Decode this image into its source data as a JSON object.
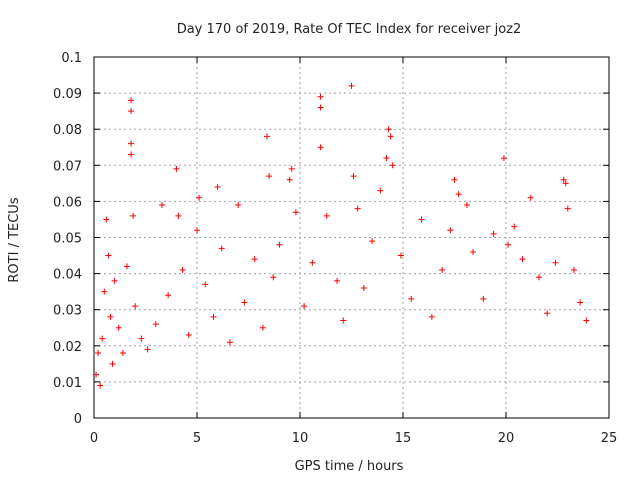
{
  "chart_data": {
    "type": "scatter",
    "title": "Day 170 of 2019, Rate Of TEC Index for receiver joz2",
    "xlabel": "GPS time / hours",
    "ylabel": "ROTI / TECUs",
    "xlim": [
      0,
      25
    ],
    "ylim": [
      0,
      0.1
    ],
    "xticks": [
      0,
      5,
      10,
      15,
      20,
      25
    ],
    "yticks": [
      0,
      0.01,
      0.02,
      0.03,
      0.04,
      0.05,
      0.06,
      0.07,
      0.08,
      0.09,
      0.1
    ],
    "xtick_labels": [
      "0",
      "5",
      "10",
      "15",
      "20",
      "25"
    ],
    "ytick_labels": [
      "0",
      "0.01",
      "0.02",
      "0.03",
      "0.04",
      "0.05",
      "0.06",
      "0.07",
      "0.08",
      "0.09",
      "0.1"
    ],
    "grid": true,
    "marker": "+",
    "series": [
      {
        "name": "ROTI",
        "color": "#ff0000",
        "points": [
          [
            0.1,
            0.012
          ],
          [
            0.2,
            0.018
          ],
          [
            0.3,
            0.009
          ],
          [
            0.4,
            0.022
          ],
          [
            0.5,
            0.035
          ],
          [
            0.6,
            0.055
          ],
          [
            0.7,
            0.045
          ],
          [
            0.8,
            0.028
          ],
          [
            0.9,
            0.015
          ],
          [
            1.0,
            0.038
          ],
          [
            1.2,
            0.025
          ],
          [
            1.4,
            0.018
          ],
          [
            1.6,
            0.042
          ],
          [
            1.8,
            0.088
          ],
          [
            1.8,
            0.085
          ],
          [
            1.8,
            0.076
          ],
          [
            1.8,
            0.073
          ],
          [
            1.9,
            0.056
          ],
          [
            2.0,
            0.031
          ],
          [
            2.3,
            0.022
          ],
          [
            2.6,
            0.019
          ],
          [
            3.0,
            0.026
          ],
          [
            3.3,
            0.059
          ],
          [
            3.6,
            0.034
          ],
          [
            4.0,
            0.069
          ],
          [
            4.1,
            0.056
          ],
          [
            4.3,
            0.041
          ],
          [
            4.6,
            0.023
          ],
          [
            5.0,
            0.052
          ],
          [
            5.1,
            0.061
          ],
          [
            5.4,
            0.037
          ],
          [
            5.8,
            0.028
          ],
          [
            6.0,
            0.064
          ],
          [
            6.2,
            0.047
          ],
          [
            6.6,
            0.021
          ],
          [
            7.0,
            0.059
          ],
          [
            7.3,
            0.032
          ],
          [
            7.8,
            0.044
          ],
          [
            8.2,
            0.025
          ],
          [
            8.4,
            0.078
          ],
          [
            8.5,
            0.067
          ],
          [
            8.7,
            0.039
          ],
          [
            9.0,
            0.048
          ],
          [
            9.5,
            0.066
          ],
          [
            9.6,
            0.069
          ],
          [
            9.8,
            0.057
          ],
          [
            10.2,
            0.031
          ],
          [
            10.6,
            0.043
          ],
          [
            11.0,
            0.089
          ],
          [
            11.0,
            0.086
          ],
          [
            11.0,
            0.075
          ],
          [
            11.3,
            0.056
          ],
          [
            11.8,
            0.038
          ],
          [
            12.1,
            0.027
          ],
          [
            12.5,
            0.092
          ],
          [
            12.6,
            0.067
          ],
          [
            12.8,
            0.058
          ],
          [
            13.1,
            0.036
          ],
          [
            13.5,
            0.049
          ],
          [
            13.9,
            0.063
          ],
          [
            14.2,
            0.072
          ],
          [
            14.3,
            0.08
          ],
          [
            14.4,
            0.078
          ],
          [
            14.5,
            0.07
          ],
          [
            14.9,
            0.045
          ],
          [
            15.4,
            0.033
          ],
          [
            15.9,
            0.055
          ],
          [
            16.4,
            0.028
          ],
          [
            16.9,
            0.041
          ],
          [
            17.3,
            0.052
          ],
          [
            17.5,
            0.066
          ],
          [
            17.7,
            0.062
          ],
          [
            18.1,
            0.059
          ],
          [
            18.4,
            0.046
          ],
          [
            18.9,
            0.033
          ],
          [
            19.4,
            0.051
          ],
          [
            19.9,
            0.072
          ],
          [
            20.1,
            0.048
          ],
          [
            20.4,
            0.053
          ],
          [
            20.8,
            0.044
          ],
          [
            21.2,
            0.061
          ],
          [
            21.6,
            0.039
          ],
          [
            22.0,
            0.029
          ],
          [
            22.4,
            0.043
          ],
          [
            22.8,
            0.066
          ],
          [
            22.9,
            0.065
          ],
          [
            23.0,
            0.058
          ],
          [
            23.3,
            0.041
          ],
          [
            23.6,
            0.032
          ],
          [
            23.9,
            0.027
          ]
        ]
      }
    ]
  }
}
